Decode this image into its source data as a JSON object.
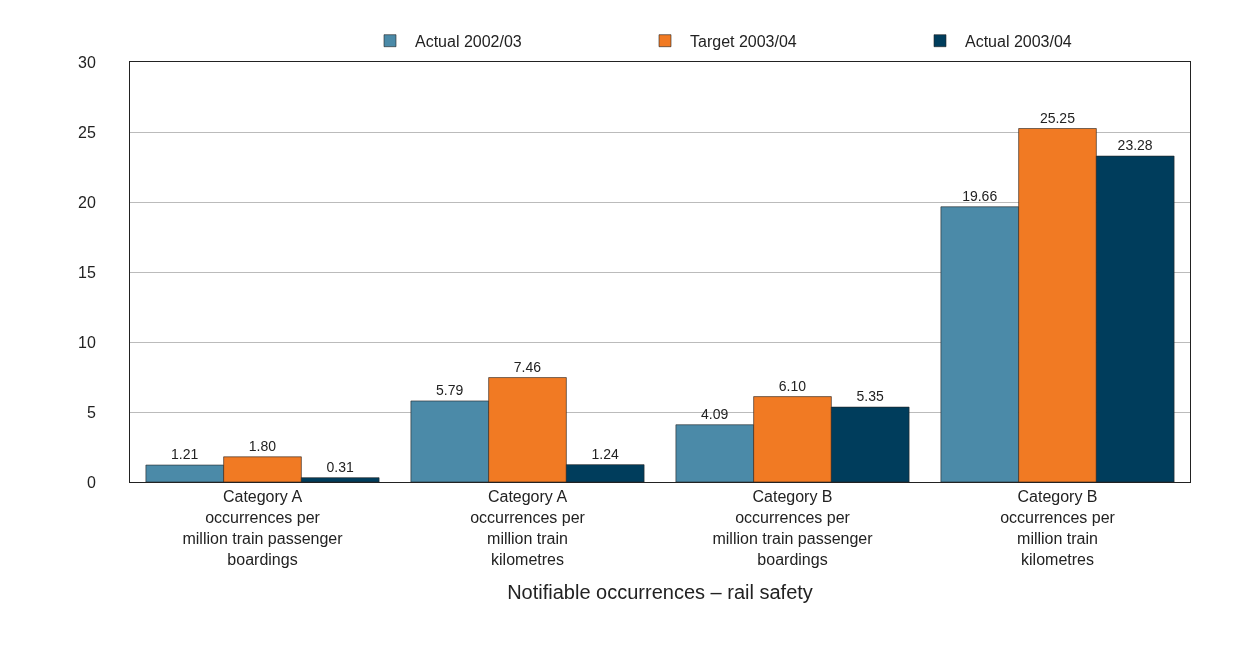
{
  "chart_data": {
    "type": "bar",
    "xlabel": "Notifiable occurrences – rail safety",
    "categories": [
      "Category A\noccurrences per\nmillion train passenger\nboardings",
      "Category A\noccurrences per\nmillion train\nkilometres",
      "Category B\noccurrences per\nmillion train passenger\nboardings",
      "Category B\noccurrences per\nmillion train\nkilometres"
    ],
    "series": [
      {
        "name": "Actual 2002/03",
        "color": "#4b8aa8",
        "values": [
          1.21,
          5.79,
          4.09,
          19.66
        ]
      },
      {
        "name": "Target 2003/04",
        "color": "#f17a23",
        "values": [
          1.8,
          7.46,
          6.1,
          25.25
        ]
      },
      {
        "name": "Actual 2003/04",
        "color": "#003d5c",
        "values": [
          0.31,
          1.24,
          5.35,
          23.28
        ]
      }
    ],
    "value_labels": [
      [
        "1.21",
        "5.79",
        "4.09",
        "19.66"
      ],
      [
        "1.80",
        "7.46",
        "6.10",
        "25.25"
      ],
      [
        "0.31",
        "1.24",
        "5.35",
        "23.28"
      ]
    ],
    "ylim": [
      0,
      30
    ],
    "yticks": [
      0,
      5,
      10,
      15,
      20,
      25,
      30
    ],
    "grid": "y",
    "legend": "top right"
  }
}
